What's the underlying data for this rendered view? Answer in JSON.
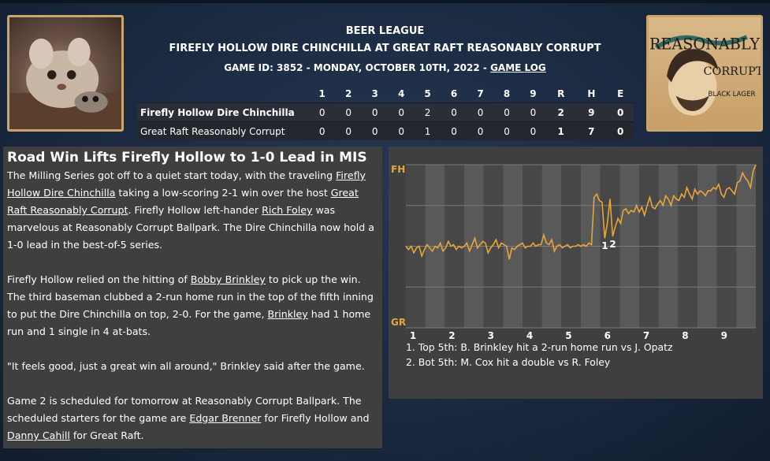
{
  "header": {
    "league": "BEER LEAGUE",
    "matchup": "FIREFLY HOLLOW DIRE CHINCHILLA AT GREAT RAFT REASONABLY CORRUPT",
    "game_info": "GAME ID: 3852 - MONDAY, OCTOBER 10TH, 2022 - ",
    "game_log_link": "GAME LOG"
  },
  "logos": {
    "left": "chinchilla-logo",
    "right": "reasonably-corrupt-logo",
    "right_text_1": "REASONABLY",
    "right_text_2": "CORRUPT",
    "right_text_3": "BLACK LAGER"
  },
  "boxscore": {
    "columns": [
      "1",
      "2",
      "3",
      "4",
      "5",
      "6",
      "7",
      "8",
      "9",
      "R",
      "H",
      "E"
    ],
    "rows": [
      {
        "team": "Firefly Hollow Dire Chinchilla",
        "cells": [
          "0",
          "0",
          "0",
          "0",
          "2",
          "0",
          "0",
          "0",
          "0",
          "2",
          "9",
          "0"
        ]
      },
      {
        "team": "Great Raft Reasonably Corrupt",
        "cells": [
          "0",
          "0",
          "0",
          "0",
          "1",
          "0",
          "0",
          "0",
          "0",
          "1",
          "7",
          "0"
        ]
      }
    ]
  },
  "article": {
    "headline": "Road Win Lifts Firefly Hollow to 1-0 Lead in MIS",
    "p1": {
      "t1": "The Milling Series got off to a quiet start today, with the traveling ",
      "l1": "Firefly Hollow Dire Chinchilla",
      "t2": " taking a low-scoring 2-1 win over the host ",
      "l2": "Great Raft Reasonably Corrupt",
      "t3": ". Firefly Hollow left-hander ",
      "l3": "Rich Foley",
      "t4": " was marvelous at Reasonably Corrupt Ballpark. The Dire Chinchilla now hold a 1-0 lead in the best-of-5 series."
    },
    "p2": {
      "t1": "Firefly Hollow relied on the hitting of ",
      "l1": "Bobby Brinkley",
      "t2": " to pick up the win. The third baseman clubbed a 2-run home run in the top of the fifth inning to put the Dire Chinchilla on top, 2-0. For the game, ",
      "l2": "Brinkley",
      "t3": " had 1 home run and 1 single in 4 at-bats."
    },
    "p3": "\"It feels good, just a great win all around,\" Brinkley said after the game.",
    "p4": {
      "t1": "Game 2 is scheduled for tomorrow at Reasonably Corrupt Ballpark. The scheduled starters for the game are ",
      "l1": "Edgar Brenner",
      "t2": " for Firefly Hollow and ",
      "l2": "Danny Cahill",
      "t3": " for Great Raft."
    }
  },
  "chart_data": {
    "type": "line",
    "y_top_label": "FH",
    "y_bottom_label": "GR",
    "x_tick_labels": [
      "1",
      "2",
      "3",
      "4",
      "5",
      "6",
      "7",
      "8",
      "9"
    ],
    "ylim": [
      0,
      100
    ],
    "line_color": "#e8a53a",
    "values": [
      50,
      48,
      50,
      46,
      49,
      50,
      44,
      48,
      51,
      49,
      47,
      50,
      49,
      52,
      47,
      49,
      53,
      50,
      51,
      48,
      50,
      49,
      50,
      52,
      47,
      51,
      55,
      49,
      51,
      53,
      52,
      46,
      49,
      51,
      54,
      49,
      52,
      51,
      50,
      42,
      49,
      48,
      50,
      51,
      52,
      49,
      50,
      50,
      52,
      50,
      51,
      51,
      57,
      52,
      51,
      54,
      47,
      50,
      51,
      49,
      50,
      51,
      49,
      50,
      50,
      51,
      50,
      51,
      50,
      52,
      51,
      80,
      82,
      78,
      77,
      55,
      64,
      79,
      56,
      62,
      67,
      64,
      72,
      73,
      70,
      72,
      71,
      75,
      71,
      74,
      69,
      75,
      80,
      74,
      73,
      76,
      78,
      75,
      81,
      79,
      75,
      81,
      79,
      78,
      82,
      80,
      86,
      82,
      79,
      85,
      82,
      84,
      83,
      81,
      84,
      84,
      86,
      85,
      88,
      82,
      80,
      85,
      86,
      84,
      82,
      89,
      90,
      95,
      92,
      90,
      86,
      96,
      100
    ],
    "markers": [
      {
        "label": "1",
        "index": 75
      },
      {
        "label": "2",
        "index": 78
      }
    ],
    "annotations": [
      "1. Top 5th: B. Brinkley hit a 2-run home run vs J. Opatz",
      "2. Bot 5th: M. Cox hit a double vs R. Foley"
    ]
  }
}
